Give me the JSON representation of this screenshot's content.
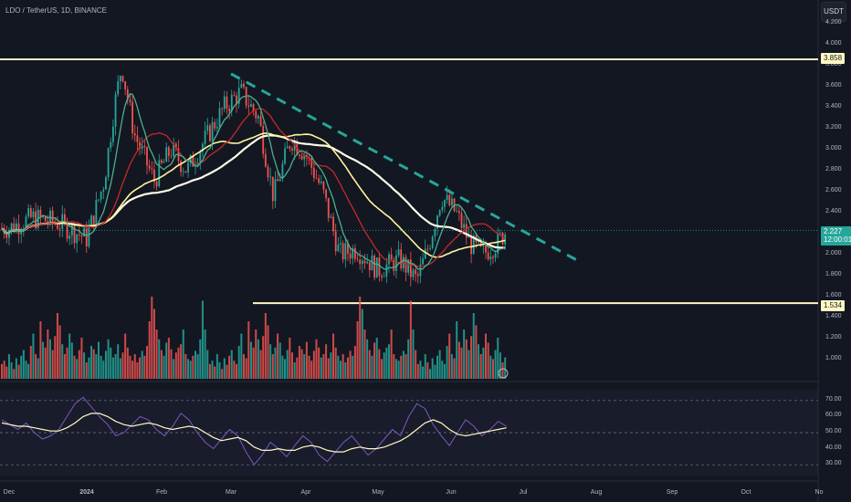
{
  "header": {
    "symbol": "LDO / TetherUS, 1D, BINANCE"
  },
  "toolbar": {
    "currency_label": "USDT"
  },
  "colors": {
    "background": "#131722",
    "up": "#26a69a",
    "down": "#ef5350",
    "sma_fast": "#4caf8f",
    "sma_mid": "#c62828",
    "sma_slow_1": "#fff59d",
    "sma_slow_2": "#fffde7",
    "hline": "#fff9c4",
    "trendline": "#26a69a",
    "rsi": "#7e57c2",
    "rsi_ma": "#fff9c4"
  },
  "chart_data": [
    {
      "type": "candlestick",
      "title": "",
      "pair": "LDO / TetherUS",
      "interval": "1D",
      "exchange": "BINANCE",
      "ylim": [
        0.9,
        4.25
      ],
      "y_ticks": [
        "4.200",
        "4.000",
        "3.800",
        "3.600",
        "3.400",
        "3.200",
        "3.000",
        "2.800",
        "2.600",
        "2.400",
        "2.200",
        "2.000",
        "1.800",
        "1.600",
        "1.400",
        "1.200",
        "1.000"
      ],
      "x_ticks": [
        "Dec",
        "2024",
        "Feb",
        "Mar",
        "Apr",
        "May",
        "Jun",
        "Jul",
        "Aug",
        "Sep",
        "Oct",
        "No"
      ],
      "last_price": "2.227",
      "countdown": "12:00:01",
      "horizontal_lines": [
        {
          "price": 3.858,
          "label": "3.858"
        },
        {
          "price": 1.534,
          "label": "1.534"
        }
      ],
      "trendline": {
        "from": {
          "date": "Mar 1",
          "price": 3.72
        },
        "to": {
          "date": "Jul 25",
          "price": 1.92
        },
        "style": "dashed"
      },
      "price_path": [
        {
          "date": "Dec 1",
          "close": 2.25
        },
        {
          "date": "Dec 10",
          "close": 2.35
        },
        {
          "date": "Dec 20",
          "close": 2.3
        },
        {
          "date": "Jan 1",
          "close": 2.15
        },
        {
          "date": "Jan 8",
          "close": 2.7
        },
        {
          "date": "Jan 12",
          "close": 3.4
        },
        {
          "date": "Jan 15",
          "close": 3.8
        },
        {
          "date": "Jan 20",
          "close": 3.15
        },
        {
          "date": "Jan 28",
          "close": 2.7
        },
        {
          "date": "Feb 5",
          "close": 3.0
        },
        {
          "date": "Feb 12",
          "close": 2.8
        },
        {
          "date": "Feb 20",
          "close": 3.1
        },
        {
          "date": "Feb 28",
          "close": 3.4
        },
        {
          "date": "Mar 5",
          "close": 3.55
        },
        {
          "date": "Mar 12",
          "close": 3.3
        },
        {
          "date": "Mar 18",
          "close": 2.55
        },
        {
          "date": "Mar 25",
          "close": 3.1
        },
        {
          "date": "Apr 1",
          "close": 2.95
        },
        {
          "date": "Apr 8",
          "close": 2.6
        },
        {
          "date": "Apr 15",
          "close": 2.0
        },
        {
          "date": "Apr 22",
          "close": 2.05
        },
        {
          "date": "May 1",
          "close": 1.85
        },
        {
          "date": "May 10",
          "close": 1.95
        },
        {
          "date": "May 17",
          "close": 1.75
        },
        {
          "date": "May 22",
          "close": 2.1
        },
        {
          "date": "May 27",
          "close": 2.55
        },
        {
          "date": "Jun 3",
          "close": 2.4
        },
        {
          "date": "Jun 9",
          "close": 2.1
        },
        {
          "date": "Jun 14",
          "close": 2.0
        },
        {
          "date": "Jun 20",
          "close": 2.1
        },
        {
          "date": "Jun 24",
          "close": 2.227
        }
      ],
      "moving_averages": [
        "SMA fast",
        "SMA medium",
        "SMA slow 1",
        "SMA slow 2"
      ],
      "volume": {
        "ylim": [
          0,
          100
        ],
        "values": [
          18,
          22,
          15,
          30,
          20,
          12,
          25,
          17,
          28,
          35,
          22,
          18,
          40,
          55,
          30,
          25,
          70,
          45,
          38,
          60,
          48,
          35,
          52,
          80,
          65,
          42,
          30,
          38,
          55,
          44,
          28,
          24,
          35,
          50,
          32,
          20,
          26,
          40,
          36,
          30,
          45,
          28,
          22,
          34,
          48,
          38,
          26,
          30,
          42,
          25,
          32,
          55,
          38,
          28,
          22,
          30,
          20,
          26,
          34,
          28,
          40,
          70,
          100,
          85,
          60,
          48,
          35,
          28,
          44,
          50,
          36,
          24,
          32,
          38,
          42,
          60,
          30,
          24,
          22,
          28,
          34,
          30,
          48,
          95,
          60,
          35
        ]
      },
      "rsi": {
        "ylim": [
          25,
          75
        ],
        "y_ticks": [
          "70.00",
          "60.00",
          "50.00",
          "40.00",
          "30.00"
        ],
        "bands": [
          70,
          50,
          30
        ],
        "values": [
          58,
          55,
          52,
          56,
          50,
          46,
          48,
          52,
          60,
          68,
          72,
          66,
          60,
          55,
          48,
          50,
          55,
          60,
          58,
          52,
          48,
          54,
          62,
          58,
          50,
          44,
          40,
          46,
          52,
          48,
          38,
          30,
          36,
          44,
          40,
          35,
          42,
          48,
          44,
          36,
          32,
          38,
          44,
          48,
          42,
          36,
          40,
          46,
          52,
          48,
          60,
          68,
          65,
          55,
          48,
          42,
          50,
          58,
          54,
          48,
          52,
          57,
          54
        ],
        "ma_values": [
          56,
          55,
          54,
          54,
          53,
          52,
          51,
          51,
          53,
          56,
          60,
          62,
          62,
          60,
          57,
          55,
          54,
          55,
          56,
          55,
          53,
          52,
          53,
          54,
          53,
          50,
          47,
          45,
          46,
          47,
          45,
          41,
          39,
          39,
          40,
          39,
          39,
          41,
          42,
          41,
          39,
          38,
          38,
          40,
          41,
          40,
          40,
          41,
          43,
          45,
          48,
          52,
          56,
          58,
          56,
          52,
          49,
          48,
          49,
          50,
          51,
          52,
          53
        ]
      }
    }
  ]
}
